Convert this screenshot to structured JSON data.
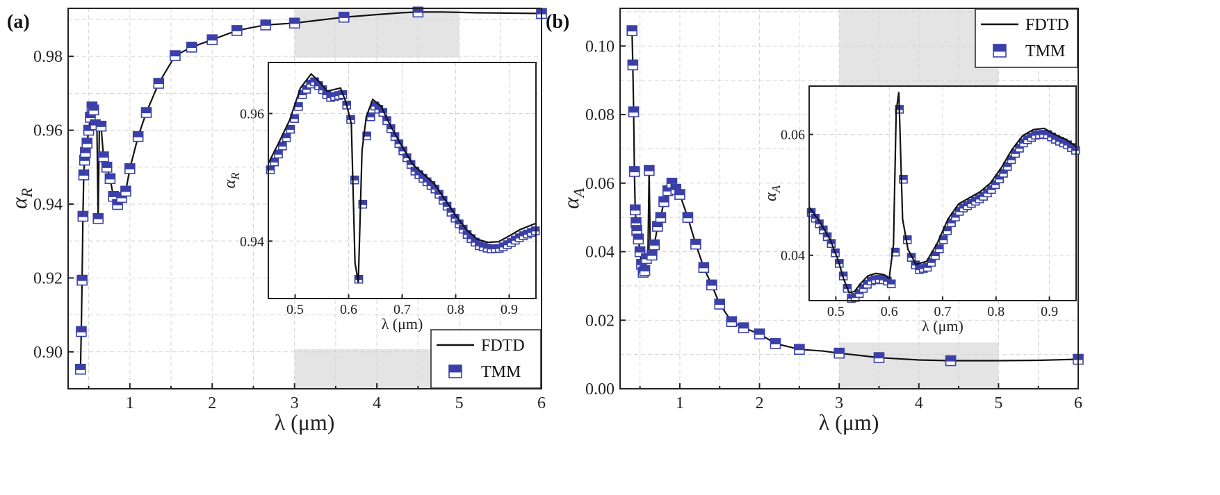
{
  "chart_data": [
    {
      "type": "line",
      "panel_label": "(a)",
      "title": "",
      "xlabel": "λ (μm)",
      "ylabel": "α_R",
      "ylabel_main": "α",
      "ylabel_sub": "R",
      "xlim": [
        0.25,
        6
      ],
      "ylim": [
        0.89,
        0.993
      ],
      "xticks": [
        1,
        2,
        3,
        4,
        5,
        6
      ],
      "yticks": [
        0.9,
        0.92,
        0.94,
        0.96,
        0.98
      ],
      "ytick_labels": [
        "0.90",
        "0.92",
        "0.94",
        "0.96",
        "0.98"
      ],
      "shaded_x_range": [
        3,
        5
      ],
      "shaded_y_ranges": [
        [
          0.9797,
          0.993
        ],
        [
          0.89,
          0.9007
        ]
      ],
      "legend": [
        "FDTD",
        "TMM"
      ],
      "legend_position": "bottom-right",
      "series": [
        {
          "name": "FDTD / TMM",
          "x": [
            0.4,
            0.41,
            0.42,
            0.43,
            0.44,
            0.45,
            0.46,
            0.48,
            0.5,
            0.52,
            0.54,
            0.56,
            0.58,
            0.6,
            0.615,
            0.63,
            0.65,
            0.68,
            0.72,
            0.76,
            0.8,
            0.85,
            0.9,
            0.95,
            1.0,
            1.1,
            1.2,
            1.35,
            1.55,
            1.75,
            2.0,
            2.3,
            2.65,
            3.0,
            3.3,
            3.6,
            4.0,
            4.3,
            4.5,
            4.8,
            5.2,
            5.6,
            6.0
          ],
          "y": [
            0.8953,
            0.9055,
            0.9194,
            0.9367,
            0.9479,
            0.9519,
            0.954,
            0.9565,
            0.96,
            0.9635,
            0.9663,
            0.9655,
            0.9615,
            0.9598,
            0.9361,
            0.9618,
            0.9611,
            0.9528,
            0.95,
            0.9469,
            0.9421,
            0.9399,
            0.9418,
            0.9435,
            0.9496,
            0.9583,
            0.9648,
            0.9727,
            0.9802,
            0.9825,
            0.9845,
            0.987,
            0.9885,
            0.989,
            0.9898,
            0.9906,
            0.9913,
            0.9918,
            0.992,
            0.992,
            0.9918,
            0.9917,
            0.9916
          ]
        }
      ],
      "tmm_markers_x": [
        0.4,
        0.41,
        0.42,
        0.43,
        0.44,
        0.45,
        0.46,
        0.48,
        0.5,
        0.52,
        0.54,
        0.56,
        0.58,
        0.615,
        0.65,
        0.68,
        0.72,
        0.76,
        0.8,
        0.85,
        0.9,
        0.95,
        1.0,
        1.1,
        1.2,
        1.35,
        1.55,
        1.75,
        2.0,
        2.3,
        2.65,
        3.0,
        3.6,
        4.5,
        6.0
      ],
      "inset": {
        "xlabel": "λ (μm)",
        "ylabel": "α_R",
        "ylabel_main": "α",
        "ylabel_sub": "R",
        "xlim": [
          0.45,
          0.95
        ],
        "ylim": [
          0.931,
          0.968
        ],
        "xticks": [
          0.5,
          0.6,
          0.7,
          0.8,
          0.9
        ],
        "xtick_labels": [
          "0.5",
          "0.6",
          "0.7",
          "0.8",
          "0.9"
        ],
        "yticks": [
          0.94,
          0.96
        ],
        "ytick_labels": [
          "0.94",
          "0.96"
        ],
        "x": [
          0.45,
          0.47,
          0.49,
          0.51,
          0.53,
          0.545,
          0.56,
          0.575,
          0.585,
          0.595,
          0.605,
          0.612,
          0.618,
          0.625,
          0.633,
          0.645,
          0.66,
          0.68,
          0.7,
          0.72,
          0.74,
          0.76,
          0.78,
          0.8,
          0.82,
          0.84,
          0.86,
          0.88,
          0.9,
          0.92,
          0.95
        ],
        "y": [
          0.9522,
          0.9555,
          0.959,
          0.964,
          0.9662,
          0.965,
          0.9635,
          0.9638,
          0.964,
          0.9618,
          0.9584,
          0.9366,
          0.9335,
          0.9542,
          0.9595,
          0.9622,
          0.9612,
          0.9578,
          0.9548,
          0.952,
          0.9505,
          0.949,
          0.9465,
          0.944,
          0.9418,
          0.9403,
          0.9398,
          0.9399,
          0.9408,
          0.9418,
          0.9428
        ]
      }
    },
    {
      "type": "line",
      "panel_label": "(b)",
      "title": "",
      "xlabel": "λ (μm)",
      "ylabel": "α_A",
      "ylabel_main": "α",
      "ylabel_sub": "A",
      "xlim": [
        0.25,
        6
      ],
      "ylim": [
        0,
        0.111
      ],
      "xticks": [
        1,
        2,
        3,
        4,
        5,
        6
      ],
      "yticks": [
        0.0,
        0.02,
        0.04,
        0.06,
        0.08,
        0.1
      ],
      "ytick_labels": [
        "0.00",
        "0.02",
        "0.04",
        "0.06",
        "0.08",
        "0.10"
      ],
      "shaded_x_range": [
        3,
        5
      ],
      "shaded_y_ranges": [
        [
          0.0875,
          0.111
        ],
        [
          0,
          0.0135
        ]
      ],
      "legend": [
        "FDTD",
        "TMM"
      ],
      "legend_position": "top-right",
      "series": [
        {
          "name": "FDTD / TMM",
          "x": [
            0.4,
            0.41,
            0.42,
            0.43,
            0.44,
            0.45,
            0.46,
            0.48,
            0.5,
            0.52,
            0.54,
            0.56,
            0.58,
            0.6,
            0.615,
            0.63,
            0.65,
            0.68,
            0.72,
            0.76,
            0.8,
            0.85,
            0.9,
            0.95,
            1.0,
            1.1,
            1.2,
            1.3,
            1.4,
            1.5,
            1.65,
            1.8,
            2.0,
            2.2,
            2.5,
            2.8,
            3.0,
            3.5,
            4.0,
            4.4,
            5.0,
            5.5,
            6.0
          ],
          "y": [
            0.1045,
            0.0945,
            0.0808,
            0.0634,
            0.0522,
            0.0485,
            0.0462,
            0.0437,
            0.04,
            0.0363,
            0.034,
            0.0345,
            0.038,
            0.0398,
            0.0637,
            0.0385,
            0.039,
            0.042,
            0.0474,
            0.05,
            0.0546,
            0.0578,
            0.06,
            0.0582,
            0.0567,
            0.05,
            0.0422,
            0.0354,
            0.0303,
            0.0247,
            0.0196,
            0.0178,
            0.016,
            0.0132,
            0.0115,
            0.011,
            0.0104,
            0.0091,
            0.0084,
            0.0082,
            0.0082,
            0.0083,
            0.0086
          ]
        }
      ],
      "tmm_markers_x": [
        0.4,
        0.41,
        0.42,
        0.43,
        0.44,
        0.45,
        0.46,
        0.48,
        0.5,
        0.52,
        0.54,
        0.56,
        0.58,
        0.615,
        0.65,
        0.68,
        0.72,
        0.76,
        0.8,
        0.85,
        0.9,
        0.95,
        1.0,
        1.1,
        1.2,
        1.3,
        1.4,
        1.5,
        1.65,
        1.8,
        2.0,
        2.2,
        2.5,
        3.0,
        3.5,
        4.4,
        6.0
      ],
      "inset": {
        "xlabel": "λ (μm)",
        "ylabel": "α_A",
        "ylabel_main": "α",
        "ylabel_sub": "A",
        "xlim": [
          0.45,
          0.95
        ],
        "ylim": [
          0.0325,
          0.068
        ],
        "xticks": [
          0.5,
          0.6,
          0.7,
          0.8,
          0.9
        ],
        "xtick_labels": [
          "0.5",
          "0.6",
          "0.7",
          "0.8",
          "0.9"
        ],
        "yticks": [
          0.04,
          0.06
        ],
        "ytick_labels": [
          "0.04",
          "0.06"
        ],
        "x": [
          0.45,
          0.47,
          0.49,
          0.505,
          0.515,
          0.525,
          0.535,
          0.545,
          0.56,
          0.575,
          0.59,
          0.6,
          0.608,
          0.613,
          0.618,
          0.625,
          0.635,
          0.65,
          0.67,
          0.69,
          0.71,
          0.73,
          0.75,
          0.77,
          0.79,
          0.81,
          0.83,
          0.85,
          0.87,
          0.89,
          0.91,
          0.93,
          0.95
        ],
        "y": [
          0.048,
          0.0455,
          0.0425,
          0.039,
          0.036,
          0.0338,
          0.034,
          0.0352,
          0.0366,
          0.037,
          0.0368,
          0.0362,
          0.0418,
          0.0638,
          0.067,
          0.046,
          0.041,
          0.0385,
          0.039,
          0.042,
          0.046,
          0.0485,
          0.0495,
          0.0505,
          0.052,
          0.0545,
          0.0575,
          0.0598,
          0.0608,
          0.061,
          0.06,
          0.0592,
          0.058
        ]
      }
    }
  ]
}
